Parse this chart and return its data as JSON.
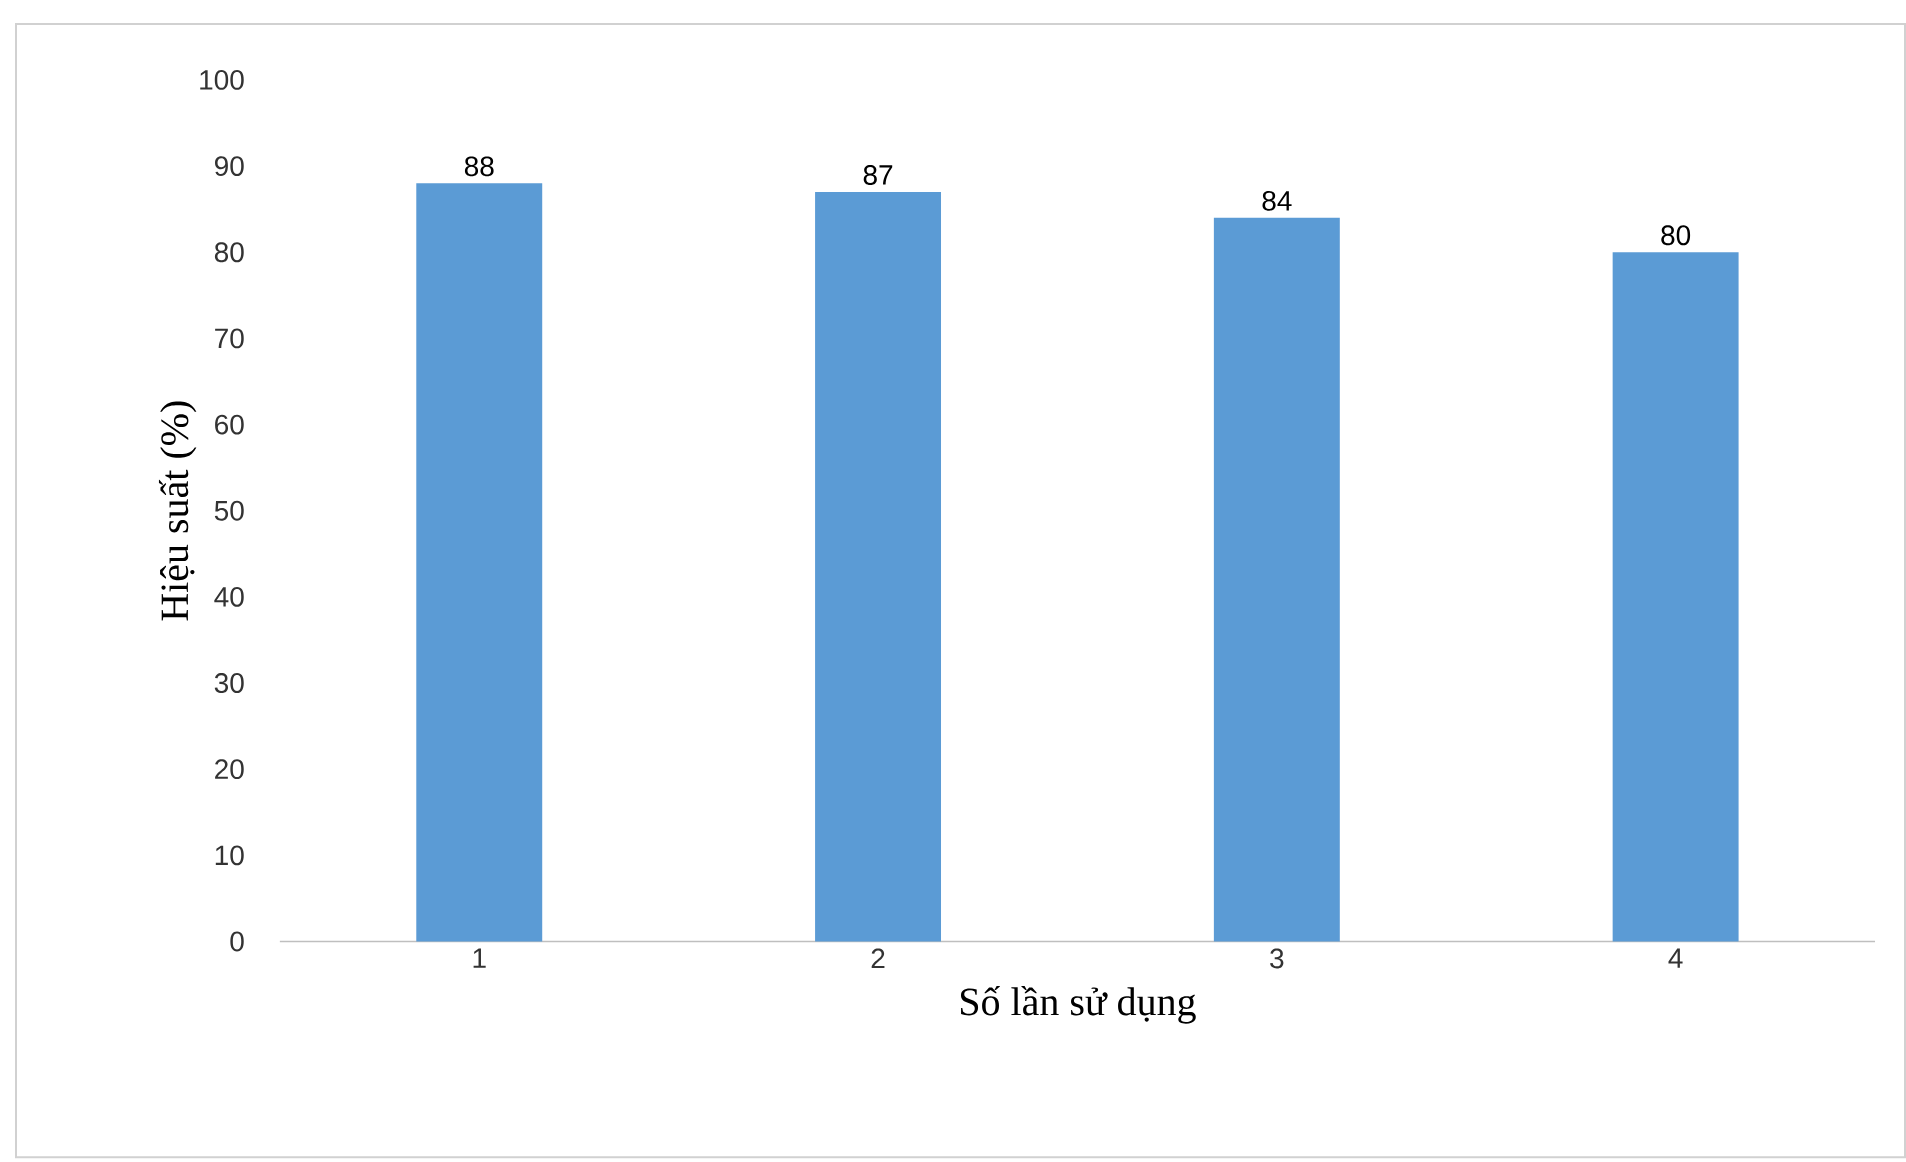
{
  "chart_data": {
    "type": "bar",
    "xlabel": "Số lần sử dụng",
    "ylabel": "Hiệu suất (%)",
    "categories": [
      "1",
      "2",
      "3",
      "4"
    ],
    "values": [
      88,
      87,
      84,
      80
    ],
    "color": "#5b9bd5",
    "ylim": [
      0,
      100
    ],
    "yticks": [
      0,
      10,
      20,
      30,
      40,
      50,
      60,
      70,
      80,
      90,
      100
    ],
    "data_labels": true
  }
}
